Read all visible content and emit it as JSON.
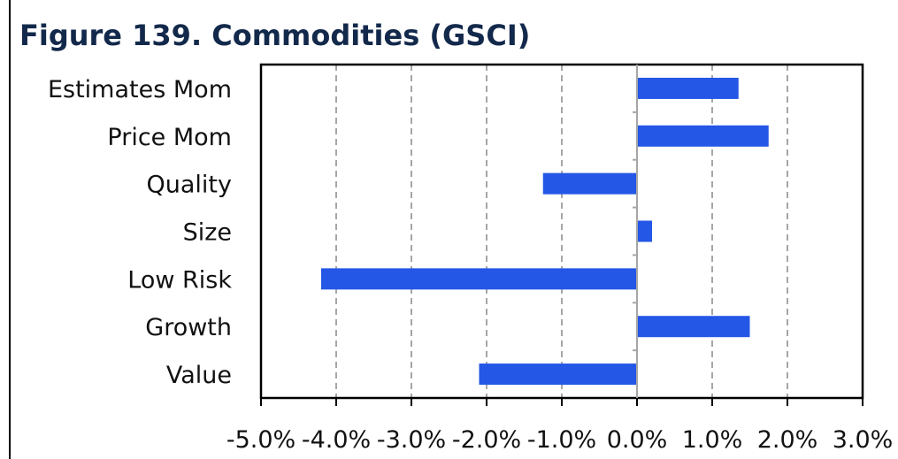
{
  "figure": {
    "title": "Figure 139. Commodities (GSCI)"
  },
  "chart_data": {
    "type": "bar",
    "orientation": "horizontal",
    "title": "Figure 139. Commodities (GSCI)",
    "categories": [
      "Estimates Mom",
      "Price Mom",
      "Quality",
      "Size",
      "Low Risk",
      "Growth",
      "Value"
    ],
    "values": [
      1.35,
      1.75,
      -1.25,
      0.2,
      -4.2,
      1.5,
      -2.1
    ],
    "xlim": [
      -5,
      3
    ],
    "x_ticks": [
      -5,
      -4,
      -3,
      -2,
      -1,
      0,
      1,
      2,
      3
    ],
    "x_tick_labels": [
      "-5.0%",
      "-4.0%",
      "-3.0%",
      "-2.0%",
      "-1.0%",
      "0.0%",
      "1.0%",
      "2.0%",
      "3.0%"
    ],
    "xlabel": "",
    "ylabel": "",
    "grid": "vertical dashed",
    "legend": "none",
    "colors": {
      "bar": "#2457e6",
      "grid": "#a6a6a6",
      "title": "#13294b"
    }
  }
}
